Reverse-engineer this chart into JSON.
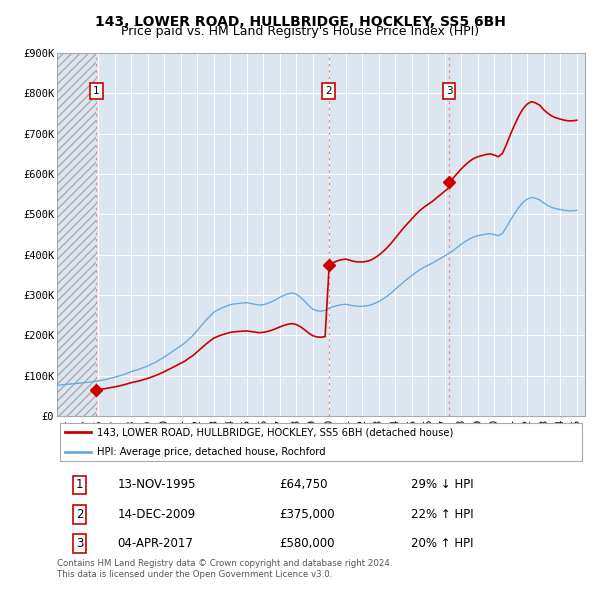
{
  "title": "143, LOWER ROAD, HULLBRIDGE, HOCKLEY, SS5 6BH",
  "subtitle": "Price paid vs. HM Land Registry's House Price Index (HPI)",
  "ylim": [
    0,
    900000
  ],
  "yticks": [
    0,
    100000,
    200000,
    300000,
    400000,
    500000,
    600000,
    700000,
    800000,
    900000
  ],
  "ytick_labels": [
    "£0",
    "£100K",
    "£200K",
    "£300K",
    "£400K",
    "£500K",
    "£600K",
    "£700K",
    "£800K",
    "£900K"
  ],
  "xlim_start": 1993.5,
  "xlim_end": 2025.5,
  "plot_bg_color": "#dce6f1",
  "grid_color": "#ffffff",
  "sale_dates": [
    1995.87,
    2009.96,
    2017.26
  ],
  "sale_prices": [
    64750,
    375000,
    580000
  ],
  "sale_labels": [
    "1",
    "2",
    "3"
  ],
  "sale_dot_color": "#cc0000",
  "sale_line_color": "#cc0000",
  "hpi_line_color": "#6aabdd",
  "legend_sale_label": "143, LOWER ROAD, HULLBRIDGE, HOCKLEY, SS5 6BH (detached house)",
  "legend_hpi_label": "HPI: Average price, detached house, Rochford",
  "table_data": [
    [
      "1",
      "13-NOV-1995",
      "£64,750",
      "29% ↓ HPI"
    ],
    [
      "2",
      "14-DEC-2009",
      "£375,000",
      "22% ↑ HPI"
    ],
    [
      "3",
      "04-APR-2017",
      "£580,000",
      "20% ↑ HPI"
    ]
  ],
  "footnote": "Contains HM Land Registry data © Crown copyright and database right 2024.\nThis data is licensed under the Open Government Licence v3.0.",
  "title_fontsize": 10,
  "subtitle_fontsize": 9,
  "tick_fontsize": 7.5,
  "hatch_end": 1995.87,
  "hpi_data_x": [
    1993.5,
    1993.75,
    1994.0,
    1994.25,
    1994.5,
    1994.75,
    1995.0,
    1995.25,
    1995.5,
    1995.75,
    1996.0,
    1996.25,
    1996.5,
    1996.75,
    1997.0,
    1997.25,
    1997.5,
    1997.75,
    1998.0,
    1998.25,
    1998.5,
    1998.75,
    1999.0,
    1999.25,
    1999.5,
    1999.75,
    2000.0,
    2000.25,
    2000.5,
    2000.75,
    2001.0,
    2001.25,
    2001.5,
    2001.75,
    2002.0,
    2002.25,
    2002.5,
    2002.75,
    2003.0,
    2003.25,
    2003.5,
    2003.75,
    2004.0,
    2004.25,
    2004.5,
    2004.75,
    2005.0,
    2005.25,
    2005.5,
    2005.75,
    2006.0,
    2006.25,
    2006.5,
    2006.75,
    2007.0,
    2007.25,
    2007.5,
    2007.75,
    2008.0,
    2008.25,
    2008.5,
    2008.75,
    2009.0,
    2009.25,
    2009.5,
    2009.75,
    2010.0,
    2010.25,
    2010.5,
    2010.75,
    2011.0,
    2011.25,
    2011.5,
    2011.75,
    2012.0,
    2012.25,
    2012.5,
    2012.75,
    2013.0,
    2013.25,
    2013.5,
    2013.75,
    2014.0,
    2014.25,
    2014.5,
    2014.75,
    2015.0,
    2015.25,
    2015.5,
    2015.75,
    2016.0,
    2016.25,
    2016.5,
    2016.75,
    2017.0,
    2017.25,
    2017.5,
    2017.75,
    2018.0,
    2018.25,
    2018.5,
    2018.75,
    2019.0,
    2019.25,
    2019.5,
    2019.75,
    2020.0,
    2020.25,
    2020.5,
    2020.75,
    2021.0,
    2021.25,
    2021.5,
    2021.75,
    2022.0,
    2022.25,
    2022.5,
    2022.75,
    2023.0,
    2023.25,
    2023.5,
    2023.75,
    2024.0,
    2024.25,
    2024.5,
    2024.75,
    2025.0
  ],
  "hpi_data_y": [
    76000,
    77000,
    78000,
    79000,
    80000,
    81000,
    82000,
    83000,
    84000,
    85500,
    87000,
    89000,
    91000,
    93500,
    96000,
    99000,
    102000,
    106000,
    110000,
    113000,
    116000,
    120000,
    124000,
    129000,
    134000,
    140000,
    146000,
    153000,
    160000,
    167000,
    174000,
    181000,
    191000,
    200000,
    212000,
    224000,
    236000,
    247000,
    257000,
    263000,
    268000,
    272000,
    276000,
    278000,
    279000,
    280000,
    281000,
    279000,
    277000,
    275000,
    276000,
    279000,
    283000,
    288000,
    294000,
    299000,
    303000,
    305000,
    302000,
    295000,
    285000,
    274000,
    265000,
    261000,
    260000,
    262000,
    268000,
    271000,
    274000,
    276000,
    277000,
    275000,
    273000,
    272000,
    272000,
    273000,
    275000,
    279000,
    284000,
    290000,
    297000,
    305000,
    314000,
    323000,
    332000,
    340000,
    348000,
    356000,
    363000,
    369000,
    374000,
    379000,
    385000,
    391000,
    397000,
    403000,
    410000,
    418000,
    426000,
    433000,
    439000,
    444000,
    447000,
    449000,
    451000,
    452000,
    450000,
    447000,
    453000,
    469000,
    487000,
    503000,
    518000,
    530000,
    538000,
    542000,
    540000,
    536000,
    528000,
    522000,
    517000,
    514000,
    512000,
    510000,
    509000,
    509000,
    510000
  ]
}
